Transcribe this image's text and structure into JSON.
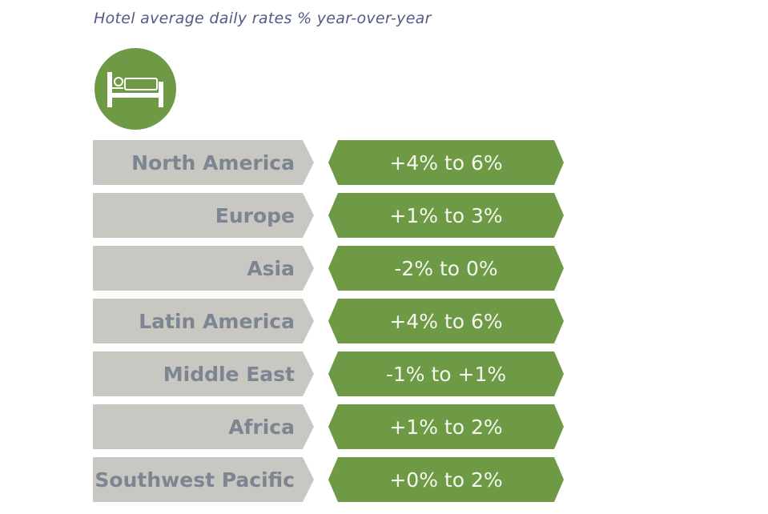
{
  "title": "Hotel average daily rates % year-over-year",
  "icon": "bed-icon",
  "colors": {
    "green": "#6f9a45",
    "gray": "#c9c7c1",
    "title": "#535a86"
  },
  "rows": [
    {
      "region": "North America",
      "rate": "+4% to 6%"
    },
    {
      "region": "Europe",
      "rate": "+1% to 3%"
    },
    {
      "region": "Asia",
      "rate": "-2% to 0%"
    },
    {
      "region": "Latin America",
      "rate": "+4% to 6%"
    },
    {
      "region": "Middle East",
      "rate": "-1% to +1%"
    },
    {
      "region": "Africa",
      "rate": "+1% to 2%"
    },
    {
      "region": "Southwest Pacific",
      "rate": "+0% to 2%"
    }
  ]
}
